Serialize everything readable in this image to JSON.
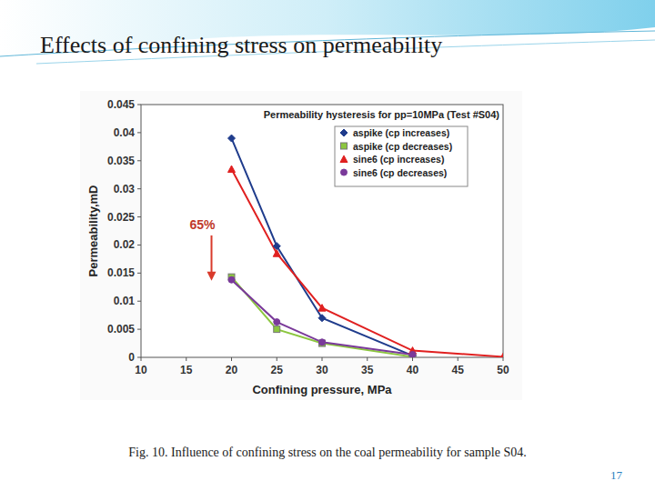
{
  "slide": {
    "title": "Effects of confining stress on permeability",
    "caption": "Fig. 10. Influence of confining stress on the coal permeability for sample S04.",
    "page_number": "17"
  },
  "chart_data": {
    "type": "line",
    "title": "Permeability hysteresis for pp=10MPa (Test #S04)",
    "x_label": "Confining pressure, MPa",
    "y_label": "Permeability,mD",
    "annotation": "65%",
    "xlim": [
      10,
      50
    ],
    "xticks": [
      10,
      15,
      20,
      25,
      30,
      35,
      40,
      45,
      50
    ],
    "ylim": [
      0,
      0.045
    ],
    "yticks": [
      0,
      0.005,
      0.01,
      0.015,
      0.02,
      0.025,
      0.03,
      0.035,
      0.04,
      0.045
    ],
    "grid": false,
    "legend": "upper-right",
    "series": [
      {
        "name": "aspike (cp increases)",
        "color": "#1f3c8c",
        "marker": "diamond",
        "line_style": "solid",
        "x": [
          20,
          25,
          30,
          40
        ],
        "values": [
          0.039,
          0.0198,
          0.007,
          0.0003
        ]
      },
      {
        "name": "aspike (cp decreases)",
        "color": "#8cc63f",
        "marker": "square",
        "line_style": "solid",
        "x": [
          20,
          25,
          30,
          40
        ],
        "values": [
          0.0143,
          0.005,
          0.0025,
          0.0001
        ]
      },
      {
        "name": "sine6 (cp increases)",
        "color": "#e02020",
        "marker": "triangle",
        "line_style": "solid",
        "x": [
          20,
          25,
          30,
          40,
          50
        ],
        "values": [
          0.0335,
          0.0185,
          0.0088,
          0.0012,
          0.0001
        ]
      },
      {
        "name": "sine6 (cp decreases)",
        "color": "#7a3a9a",
        "marker": "circle",
        "line_style": "solid",
        "x": [
          20,
          25,
          30,
          40
        ],
        "values": [
          0.0138,
          0.0063,
          0.0027,
          0.0005
        ]
      }
    ]
  }
}
